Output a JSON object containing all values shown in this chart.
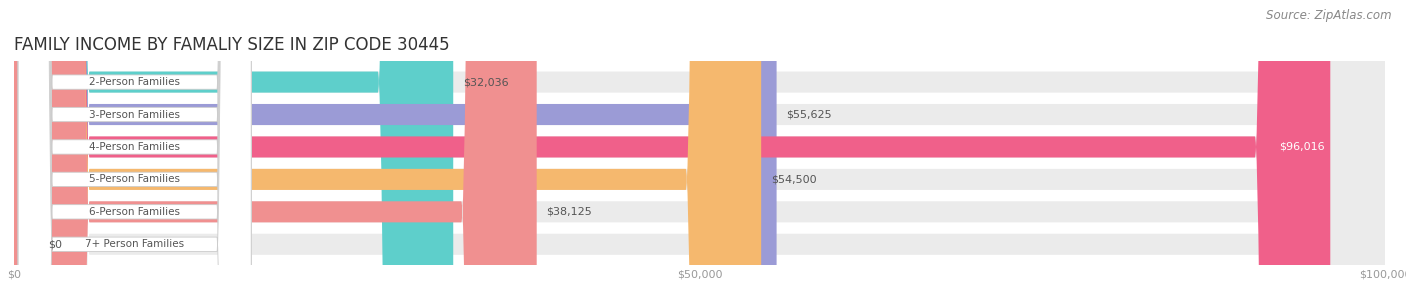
{
  "title": "FAMILY INCOME BY FAMALIY SIZE IN ZIP CODE 30445",
  "source": "Source: ZipAtlas.com",
  "categories": [
    "2-Person Families",
    "3-Person Families",
    "4-Person Families",
    "5-Person Families",
    "6-Person Families",
    "7+ Person Families"
  ],
  "values": [
    32036,
    55625,
    96016,
    54500,
    38125,
    0
  ],
  "bar_colors": [
    "#5ecfcb",
    "#9b9bd6",
    "#f0608a",
    "#f5b86e",
    "#f09090",
    "#90c8f0"
  ],
  "xlim": [
    0,
    100000
  ],
  "xticks": [
    0,
    50000,
    100000
  ],
  "xtick_labels": [
    "$0",
    "$50,000",
    "$100,000"
  ],
  "background_color": "#ffffff",
  "title_fontsize": 12,
  "source_fontsize": 8.5,
  "bar_height": 0.65,
  "value_labels": [
    "$32,036",
    "$55,625",
    "$96,016",
    "$54,500",
    "$38,125",
    "$0"
  ]
}
